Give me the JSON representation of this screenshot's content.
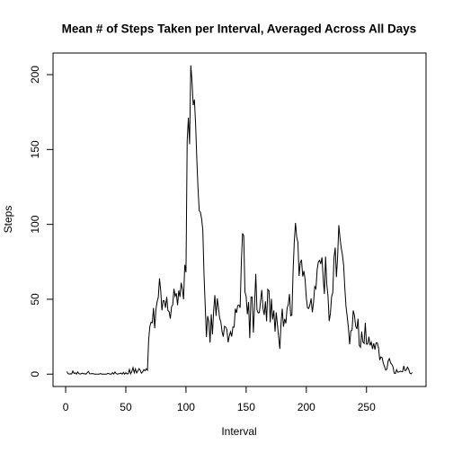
{
  "chart_data": {
    "type": "line",
    "title": "Mean # of Steps Taken per Interval, Averaged Across All Days",
    "x_label": "Interval",
    "y_label": "Steps",
    "x": [
      1,
      2,
      3,
      4,
      5,
      6,
      7,
      8,
      9,
      10,
      11,
      12,
      13,
      14,
      15,
      16,
      17,
      18,
      19,
      20,
      21,
      22,
      23,
      24,
      25,
      26,
      27,
      28,
      29,
      30,
      31,
      32,
      33,
      34,
      35,
      36,
      37,
      38,
      39,
      40,
      41,
      42,
      43,
      44,
      45,
      46,
      47,
      48,
      49,
      50,
      51,
      52,
      53,
      54,
      55,
      56,
      57,
      58,
      59,
      60,
      61,
      62,
      63,
      64,
      65,
      66,
      67,
      68,
      69,
      70,
      71,
      72,
      73,
      74,
      75,
      76,
      77,
      78,
      79,
      80,
      81,
      82,
      83,
      84,
      85,
      86,
      87,
      88,
      89,
      90,
      91,
      92,
      93,
      94,
      95,
      96,
      97,
      98,
      99,
      100,
      101,
      102,
      103,
      104,
      105,
      106,
      107,
      108,
      109,
      110,
      111,
      112,
      113,
      114,
      115,
      116,
      117,
      118,
      119,
      120,
      121,
      122,
      123,
      124,
      125,
      126,
      127,
      128,
      129,
      130,
      131,
      132,
      133,
      134,
      135,
      136,
      137,
      138,
      139,
      140,
      141,
      142,
      143,
      144,
      145,
      146,
      147,
      148,
      149,
      150,
      151,
      152,
      153,
      154,
      155,
      156,
      157,
      158,
      159,
      160,
      161,
      162,
      163,
      164,
      165,
      166,
      167,
      168,
      169,
      170,
      171,
      172,
      173,
      174,
      175,
      176,
      177,
      178,
      179,
      180,
      181,
      182,
      183,
      184,
      185,
      186,
      187,
      188,
      189,
      190,
      191,
      192,
      193,
      194,
      195,
      196,
      197,
      198,
      199,
      200,
      201,
      202,
      203,
      204,
      205,
      206,
      207,
      208,
      209,
      210,
      211,
      212,
      213,
      214,
      215,
      216,
      217,
      218,
      219,
      220,
      221,
      222,
      223,
      224,
      225,
      226,
      227,
      228,
      229,
      230,
      231,
      232,
      233,
      234,
      235,
      236,
      237,
      238,
      239,
      240,
      241,
      242,
      243,
      244,
      245,
      246,
      247,
      248,
      249,
      250,
      251,
      252,
      253,
      254,
      255,
      256,
      257,
      258,
      259,
      260,
      261,
      262,
      263,
      264,
      265,
      266,
      267,
      268,
      269,
      270,
      271,
      272,
      273,
      274,
      275,
      276,
      277,
      278,
      279,
      280,
      281,
      282,
      283,
      284,
      285,
      286,
      287,
      288
    ],
    "series": [
      {
        "name": "Steps",
        "color": "#000000",
        "values": [
          1.7,
          0.3,
          0.1,
          0.2,
          0.1,
          2.1,
          0.5,
          0.9,
          0,
          1.5,
          0.3,
          0.1,
          0.3,
          0.7,
          0.2,
          0.3,
          0,
          1.1,
          1.8,
          0.2,
          0.2,
          0.4,
          0.3,
          0,
          0,
          0,
          0,
          0,
          0.4,
          0,
          0,
          0,
          0,
          0,
          0.5,
          0.3,
          0,
          0,
          1.0,
          0.1,
          1.5,
          0.3,
          0,
          0.2,
          0.4,
          0.7,
          0,
          1.2,
          0,
          0.9,
          0.2,
          0.3,
          3.1,
          0.2,
          1.8,
          4.4,
          1.0,
          3.5,
          0.8,
          2.2,
          3.7,
          2.5,
          0.6,
          1.5,
          3.0,
          2.2,
          3.6,
          2.6,
          23.0,
          32.0,
          34.7,
          34.3,
          44.2,
          30.6,
          43.0,
          48.3,
          51.4,
          63.9,
          55.8,
          42.6,
          49.0,
          48.9,
          44.3,
          51.6,
          42.5,
          41.7,
          37.0,
          45.0,
          46.4,
          57.0,
          52.0,
          54.0,
          46.0,
          55.9,
          51.6,
          61.0,
          56.8,
          50.0,
          73.0,
          68.0,
          156.0,
          171.2,
          153.5,
          206.2,
          195.9,
          179.6,
          183.4,
          167.0,
          143.5,
          124.0,
          109.1,
          108.1,
          103.7,
          95.97,
          66.2,
          45.2,
          24.8,
          38.8,
          34.9,
          21.0,
          40.0,
          26.5,
          42.4,
          52.7,
          38.9,
          50.5,
          44.3,
          37.4,
          34.7,
          28.3,
          25.0,
          31.9,
          31.4,
          29.7,
          21.3,
          25.5,
          28.3,
          25.1,
          31.5,
          31.4,
          43.7,
          40.9,
          45.8,
          46.2,
          44.3,
          74.6,
          94.0,
          92.3,
          55.0,
          51.9,
          40.0,
          48.1,
          24.0,
          51.5,
          51.5,
          27.8,
          46.0,
          67.0,
          42.9,
          40.9,
          41.1,
          49.0,
          56.2,
          43.9,
          39.5,
          48.6,
          35.3,
          56.6,
          55.6,
          34.6,
          50.3,
          36.5,
          42.5,
          28.4,
          41.2,
          33.0,
          24.9,
          16.8,
          34.3,
          43.7,
          31.6,
          36.9,
          33.9,
          43.9,
          46.5,
          53.5,
          39.0,
          39.3,
          68.3,
          88.4,
          101.0,
          91.6,
          87.9,
          65.6,
          74.4,
          76.4,
          65.2,
          68.9,
          63.0,
          51.0,
          44.2,
          43.8,
          46.4,
          50.5,
          41.3,
          47.8,
          58.5,
          57.1,
          69.8,
          74.9,
          76.0,
          73.6,
          78.0,
          64.4,
          53.5,
          78.5,
          60.1,
          52.3,
          35.4,
          40.4,
          51.8,
          54.5,
          77.8,
          84.5,
          64.8,
          78.2,
          99.5,
          90.9,
          84.3,
          79.6,
          73.0,
          57.4,
          45.1,
          38.2,
          30.8,
          20.0,
          29.0,
          29.3,
          42.5,
          39.2,
          32.1,
          30.1,
          37.0,
          19.2,
          18.0,
          28.5,
          21.5,
          20.5,
          34.3,
          20.0,
          20.0,
          25.0,
          19.2,
          21.3,
          16.8,
          20.6,
          16.4,
          21.0,
          20.9,
          17.5,
          9.4,
          11.5,
          10.9,
          7.1,
          5.0,
          2.7,
          3.4,
          8.8,
          10.4,
          7.6,
          6.5,
          5.0,
          0.7,
          0.4,
          3.0,
          1.3,
          1.4,
          2.0,
          1.7,
          1.6,
          5.5,
          2.4,
          2.6,
          4.7,
          3.3,
          0.7,
          0.2,
          1.1
        ]
      }
    ],
    "xlim": [
      -10.48,
      299.48
    ],
    "xticks": [
      0,
      50,
      100,
      150,
      200,
      250
    ],
    "ylim": [
      -8.25,
      214.42
    ],
    "yticks": [
      0,
      50,
      100,
      150,
      200
    ]
  }
}
